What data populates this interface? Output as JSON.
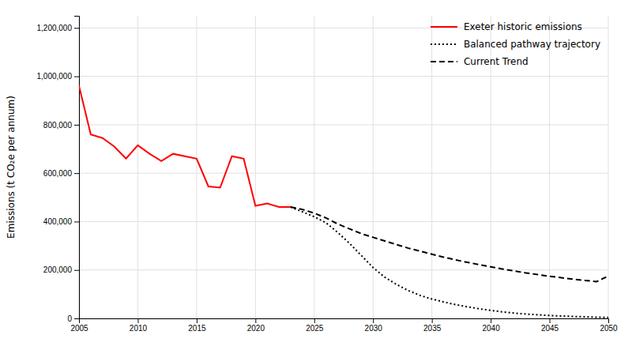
{
  "chart_data": {
    "type": "line",
    "y_label": "Emissions (t CO₂e per annum)",
    "series": [
      {
        "name": "Exeter historic emissions",
        "color": "#ff0000",
        "line_style": "solid",
        "x": [
          2005,
          2006,
          2007,
          2008,
          2009,
          2010,
          2011,
          2012,
          2013,
          2014,
          2015,
          2016,
          2017,
          2018,
          2019,
          2020,
          2021,
          2022,
          2023
        ],
        "values": [
          960000,
          760000,
          745000,
          710000,
          660000,
          715000,
          680000,
          650000,
          680000,
          670000,
          660000,
          545000,
          540000,
          670000,
          660000,
          465000,
          475000,
          460000,
          460000
        ]
      },
      {
        "name": "Balanced pathway trajectory",
        "color": "#000000",
        "line_style": "dotted",
        "x": [
          2023,
          2024,
          2025,
          2026,
          2027,
          2028,
          2029,
          2030,
          2031,
          2032,
          2033,
          2034,
          2035,
          2036,
          2037,
          2038,
          2039,
          2040,
          2041,
          2042,
          2043,
          2044,
          2045,
          2046,
          2047,
          2048,
          2049,
          2050
        ],
        "values": [
          460000,
          440000,
          420000,
          395000,
          355000,
          310000,
          260000,
          210000,
          170000,
          140000,
          115000,
          95000,
          80000,
          68000,
          57000,
          48000,
          40000,
          33000,
          27000,
          22000,
          18000,
          15000,
          12000,
          10000,
          8000,
          6500,
          5000,
          4000
        ]
      },
      {
        "name": "Current Trend",
        "color": "#000000",
        "line_style": "dashed",
        "x": [
          2023,
          2024,
          2025,
          2026,
          2027,
          2028,
          2029,
          2030,
          2031,
          2032,
          2033,
          2034,
          2035,
          2036,
          2037,
          2038,
          2039,
          2040,
          2041,
          2042,
          2043,
          2044,
          2045,
          2046,
          2047,
          2048,
          2049,
          2050
        ],
        "values": [
          460000,
          450000,
          435000,
          415000,
          390000,
          370000,
          350000,
          335000,
          320000,
          305000,
          290000,
          278000,
          265000,
          253000,
          242000,
          232000,
          222000,
          213000,
          204000,
          196000,
          188000,
          181000,
          174000,
          168000,
          162000,
          157000,
          152000,
          175000
        ]
      }
    ],
    "xlim": [
      2005,
      2050
    ],
    "ylim": [
      0,
      1250000
    ],
    "xticks": [
      2005,
      2010,
      2015,
      2020,
      2025,
      2030,
      2035,
      2040,
      2045,
      2050
    ],
    "yticks": [
      0,
      {
        "value": 200000,
        "label": "200,000"
      },
      {
        "value": 400000,
        "label": "400,000"
      },
      {
        "value": 600000,
        "label": "600,000"
      },
      {
        "value": 800000,
        "label": "800,000"
      },
      {
        "value": 1000000,
        "label": "1,000,000"
      },
      {
        "value": 1200000,
        "label": "1,200,000"
      }
    ],
    "grid": true,
    "legend": "top-right"
  }
}
